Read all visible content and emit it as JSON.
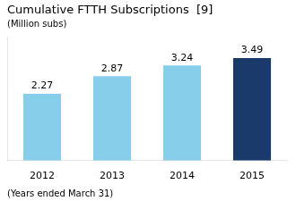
{
  "chart_data": {
    "type": "bar",
    "title": "Cumulative FTTH Subscriptions  [9]",
    "subtitle": "(Million subs)",
    "annotations": [
      "(Years ended March 31)"
    ],
    "categories": [
      "2012",
      "2013",
      "2014",
      "2015"
    ],
    "values": [
      2.27,
      2.87,
      3.24,
      3.49
    ],
    "colors": [
      "#87CEEB",
      "#87CEEB",
      "#87CEEB",
      "#1a3a6b"
    ],
    "ylim": [
      0,
      4.2
    ],
    "yticks": [],
    "grid": false,
    "data_labels": true,
    "tick_labels": "x"
  }
}
